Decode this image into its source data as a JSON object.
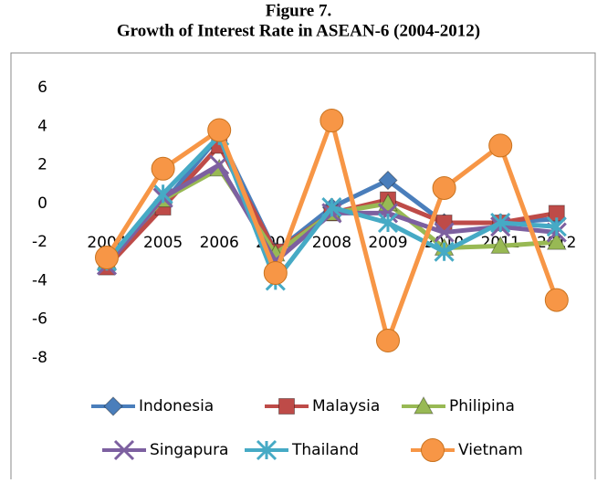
{
  "chart_data": {
    "type": "line",
    "title": "Figure 7.",
    "subtitle": "Growth of Interest Rate in ASEAN-6 (2004-2012)",
    "categories": [
      "2004",
      "2005",
      "2006",
      "2007",
      "2008",
      "2009",
      "2010",
      "2011",
      "2012"
    ],
    "ylim": [
      -8,
      6
    ],
    "yticks": [
      6,
      4,
      2,
      0,
      -2,
      -4,
      -6,
      -8
    ],
    "grid": false,
    "series": [
      {
        "name": "Indonesia",
        "color": "#4a7ebb",
        "marker": "diamond",
        "values": [
          -3.0,
          0.0,
          3.5,
          -2.5,
          -0.2,
          1.2,
          -1.0,
          -1.0,
          -0.8
        ]
      },
      {
        "name": "Malaysia",
        "color": "#be4b48",
        "marker": "square",
        "values": [
          -3.3,
          -0.2,
          3.0,
          -2.5,
          -0.5,
          0.2,
          -1.0,
          -1.0,
          -0.5
        ]
      },
      {
        "name": "Philipina",
        "color": "#98b954",
        "marker": "triangle",
        "values": [
          -3.0,
          0.2,
          1.8,
          -2.6,
          -0.5,
          0.0,
          -2.3,
          -2.2,
          -2.0
        ]
      },
      {
        "name": "Singapura",
        "color": "#7d60a0",
        "marker": "x",
        "values": [
          -3.2,
          0.3,
          2.0,
          -3.0,
          -0.5,
          -0.5,
          -1.5,
          -1.2,
          -1.5
        ]
      },
      {
        "name": "Thailand",
        "color": "#46aac5",
        "marker": "star",
        "values": [
          -3.0,
          0.5,
          3.5,
          -4.0,
          -0.2,
          -1.0,
          -2.5,
          -1.0,
          -1.2
        ]
      },
      {
        "name": "Vietnam",
        "color": "#f79646",
        "marker": "circle",
        "values": [
          -2.8,
          1.8,
          3.8,
          -3.6,
          4.3,
          -7.1,
          0.8,
          3.0,
          -5.0
        ]
      }
    ]
  }
}
